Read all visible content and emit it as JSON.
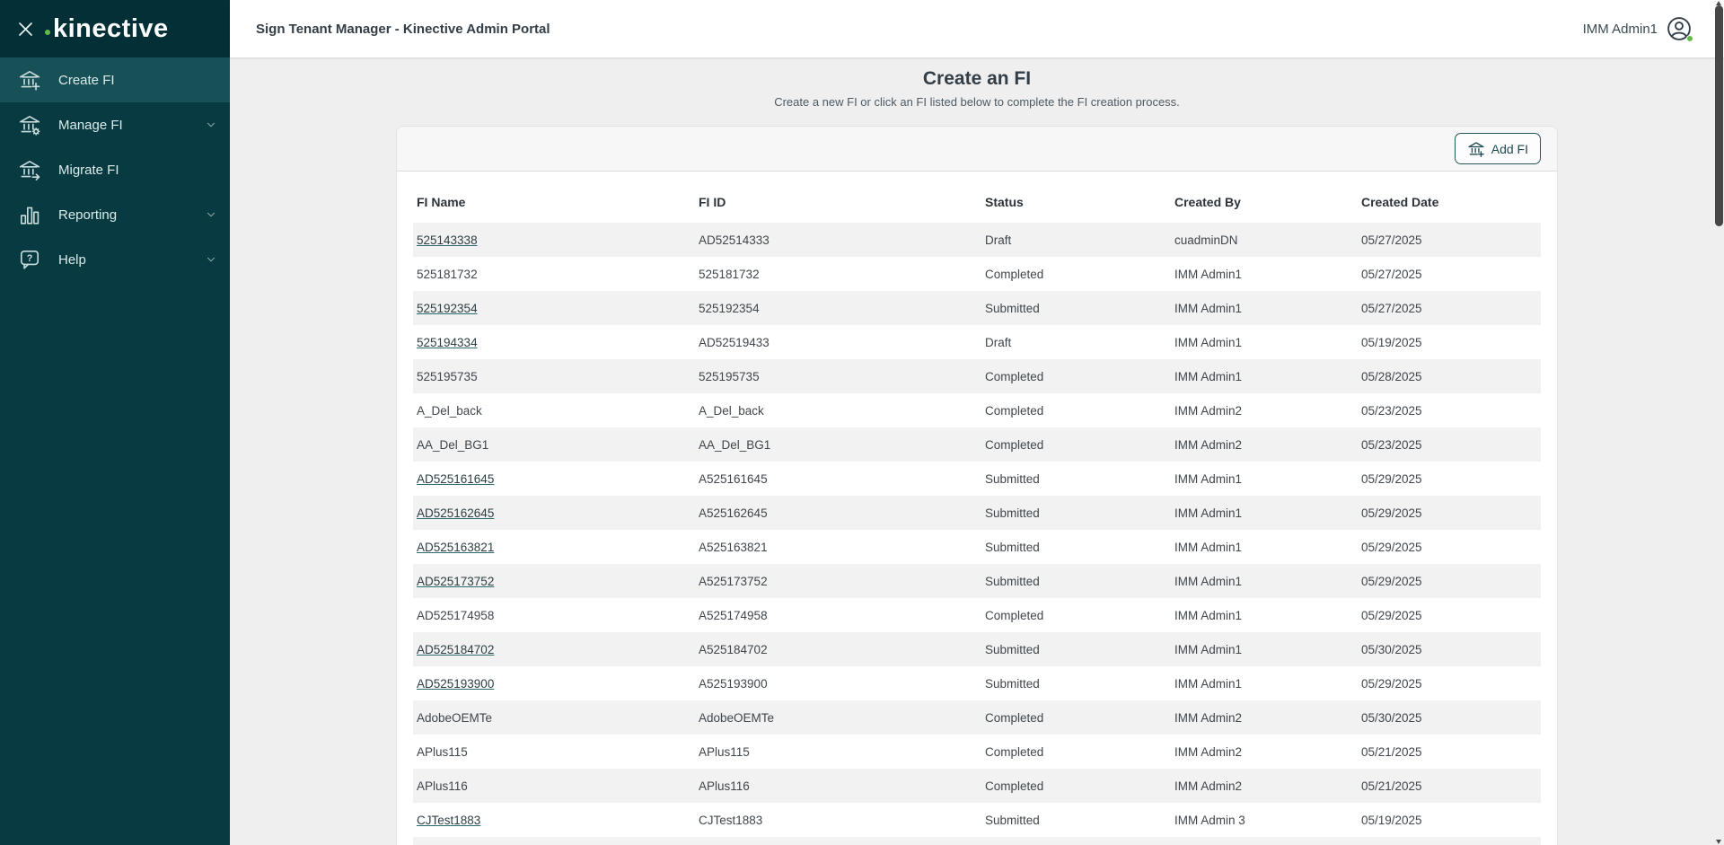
{
  "sidebar": {
    "logo_text": "kinective",
    "close_icon": "close-icon",
    "items": [
      {
        "label": "Create FI",
        "icon": "bank-plus-icon",
        "active": true,
        "expandable": false
      },
      {
        "label": "Manage FI",
        "icon": "bank-gear-icon",
        "active": false,
        "expandable": true
      },
      {
        "label": "Migrate FI",
        "icon": "bank-arrow-icon",
        "active": false,
        "expandable": false
      },
      {
        "label": "Reporting",
        "icon": "bar-chart-icon",
        "active": false,
        "expandable": true
      },
      {
        "label": "Help",
        "icon": "help-bubble-icon",
        "active": false,
        "expandable": true
      }
    ]
  },
  "topbar": {
    "title": "Sign Tenant Manager - Kinective Admin Portal",
    "user_name": "IMM Admin1",
    "user_icon": "user-circle-icon",
    "presence_color": "#62BB46"
  },
  "page": {
    "heading": "Create an FI",
    "subheading": "Create a new FI or click an FI listed below to complete the FI creation process."
  },
  "toolbar": {
    "add_fi_label": "Add FI",
    "add_fi_icon": "bank-plus-icon"
  },
  "table": {
    "headers": [
      "FI Name",
      "FI ID",
      "Status",
      "Created By",
      "Created Date"
    ],
    "rows": [
      {
        "name": "525143338",
        "id": "AD52514333",
        "status": "Draft",
        "created_by": "cuadminDN",
        "created_date": "05/27/2025",
        "link": true
      },
      {
        "name": "525181732",
        "id": "525181732",
        "status": "Completed",
        "created_by": "IMM Admin1",
        "created_date": "05/27/2025",
        "link": false
      },
      {
        "name": "525192354",
        "id": "525192354",
        "status": "Submitted",
        "created_by": "IMM Admin1",
        "created_date": "05/27/2025",
        "link": true
      },
      {
        "name": "525194334",
        "id": "AD52519433",
        "status": "Draft",
        "created_by": "IMM Admin1",
        "created_date": "05/19/2025",
        "link": true
      },
      {
        "name": "525195735",
        "id": "525195735",
        "status": "Completed",
        "created_by": "IMM Admin1",
        "created_date": "05/28/2025",
        "link": false
      },
      {
        "name": "A_Del_back",
        "id": "A_Del_back",
        "status": "Completed",
        "created_by": "IMM Admin2",
        "created_date": "05/23/2025",
        "link": false
      },
      {
        "name": "AA_Del_BG1",
        "id": "AA_Del_BG1",
        "status": "Completed",
        "created_by": "IMM Admin2",
        "created_date": "05/23/2025",
        "link": false
      },
      {
        "name": "AD525161645",
        "id": "A525161645",
        "status": "Submitted",
        "created_by": "IMM Admin1",
        "created_date": "05/29/2025",
        "link": true
      },
      {
        "name": "AD525162645",
        "id": "A525162645",
        "status": "Submitted",
        "created_by": "IMM Admin1",
        "created_date": "05/29/2025",
        "link": true
      },
      {
        "name": "AD525163821",
        "id": "A525163821",
        "status": "Submitted",
        "created_by": "IMM Admin1",
        "created_date": "05/29/2025",
        "link": true
      },
      {
        "name": "AD525173752",
        "id": "A525173752",
        "status": "Submitted",
        "created_by": "IMM Admin1",
        "created_date": "05/29/2025",
        "link": true
      },
      {
        "name": "AD525174958",
        "id": "A525174958",
        "status": "Completed",
        "created_by": "IMM Admin1",
        "created_date": "05/29/2025",
        "link": false
      },
      {
        "name": "AD525184702",
        "id": "A525184702",
        "status": "Submitted",
        "created_by": "IMM Admin1",
        "created_date": "05/30/2025",
        "link": true
      },
      {
        "name": "AD525193900",
        "id": "A525193900",
        "status": "Submitted",
        "created_by": "IMM Admin1",
        "created_date": "05/29/2025",
        "link": true
      },
      {
        "name": "AdobeOEMTe",
        "id": "AdobeOEMTe",
        "status": "Completed",
        "created_by": "IMM Admin2",
        "created_date": "05/30/2025",
        "link": false
      },
      {
        "name": "APlus115",
        "id": "APlus115",
        "status": "Completed",
        "created_by": "IMM Admin2",
        "created_date": "05/21/2025",
        "link": false
      },
      {
        "name": "APlus116",
        "id": "APlus116",
        "status": "Completed",
        "created_by": "IMM Admin2",
        "created_date": "05/21/2025",
        "link": false
      },
      {
        "name": "CJTest1883",
        "id": "CJTest1883",
        "status": "Submitted",
        "created_by": "IMM Admin 3",
        "created_date": "05/19/2025",
        "link": true
      }
    ]
  },
  "colors": {
    "sidebar_bg": "#073B41",
    "sidebar_logo_bg": "#032F36",
    "sidebar_active_bg": "#175157",
    "accent_green": "#62BB46",
    "page_bg": "#EFEFEF",
    "stripe_bg": "#F2F2F2",
    "teal_dark": "#1D4A50",
    "link_underline": "#2B6A70"
  }
}
